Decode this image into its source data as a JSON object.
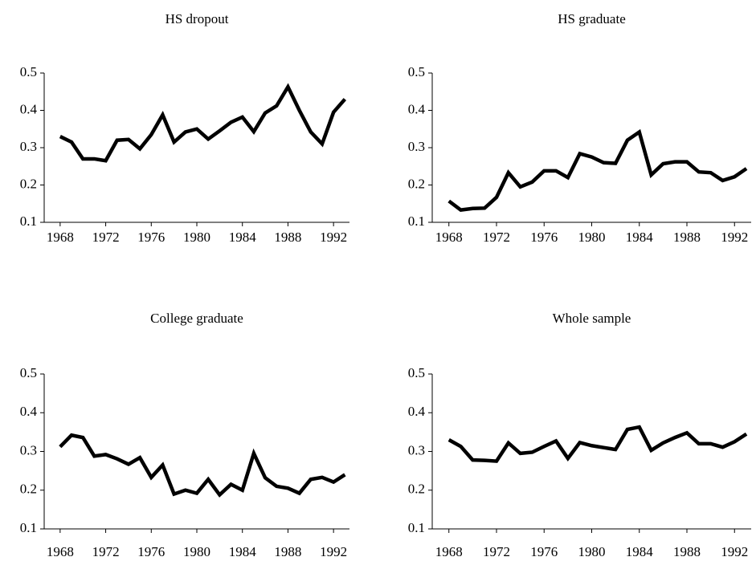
{
  "chart_data": [
    {
      "type": "line",
      "title": "HS dropout",
      "x": [
        1968,
        1969,
        1970,
        1971,
        1972,
        1973,
        1974,
        1975,
        1976,
        1977,
        1978,
        1979,
        1980,
        1981,
        1982,
        1983,
        1984,
        1985,
        1986,
        1987,
        1988,
        1989,
        1990,
        1991,
        1992,
        1993
      ],
      "series": [
        {
          "name": "HS dropout",
          "color": "#000000",
          "values": [
            0.33,
            0.315,
            0.27,
            0.27,
            0.265,
            0.32,
            0.322,
            0.297,
            0.335,
            0.388,
            0.315,
            0.342,
            0.35,
            0.323,
            0.345,
            0.368,
            0.382,
            0.343,
            0.393,
            0.412,
            0.463,
            0.4,
            0.342,
            0.31,
            0.395,
            0.43
          ]
        }
      ],
      "xlim": [
        1966.6,
        1993.4
      ],
      "xticks": [
        1968,
        1972,
        1976,
        1980,
        1984,
        1988,
        1992
      ],
      "ylim": [
        0.1,
        0.5
      ],
      "yticks": [
        0.1,
        0.2,
        0.3,
        0.4,
        0.5
      ]
    },
    {
      "type": "line",
      "title": "HS graduate",
      "x": [
        1968,
        1969,
        1970,
        1971,
        1972,
        1973,
        1974,
        1975,
        1976,
        1977,
        1978,
        1979,
        1980,
        1981,
        1982,
        1983,
        1984,
        1985,
        1986,
        1987,
        1988,
        1989,
        1990,
        1991,
        1992,
        1993
      ],
      "series": [
        {
          "name": "HS graduate",
          "color": "#000000",
          "values": [
            0.157,
            0.133,
            0.137,
            0.138,
            0.167,
            0.233,
            0.195,
            0.208,
            0.238,
            0.238,
            0.22,
            0.284,
            0.275,
            0.26,
            0.258,
            0.32,
            0.342,
            0.227,
            0.257,
            0.262,
            0.262,
            0.235,
            0.233,
            0.212,
            0.222,
            0.244
          ]
        }
      ],
      "xlim": [
        1966.6,
        1993.4
      ],
      "xticks": [
        1968,
        1972,
        1976,
        1980,
        1984,
        1988,
        1992
      ],
      "ylim": [
        0.1,
        0.5
      ],
      "yticks": [
        0.1,
        0.2,
        0.3,
        0.4,
        0.5
      ]
    },
    {
      "type": "line",
      "title": "College graduate",
      "x": [
        1968,
        1969,
        1970,
        1971,
        1972,
        1973,
        1974,
        1975,
        1976,
        1977,
        1978,
        1979,
        1980,
        1981,
        1982,
        1983,
        1984,
        1985,
        1986,
        1987,
        1988,
        1989,
        1990,
        1991,
        1992,
        1993
      ],
      "series": [
        {
          "name": "College graduate",
          "color": "#000000",
          "values": [
            0.312,
            0.342,
            0.336,
            0.288,
            0.292,
            0.281,
            0.267,
            0.284,
            0.233,
            0.265,
            0.19,
            0.2,
            0.192,
            0.228,
            0.188,
            0.215,
            0.2,
            0.295,
            0.232,
            0.21,
            0.205,
            0.192,
            0.228,
            0.233,
            0.221,
            0.24
          ]
        }
      ],
      "xlim": [
        1966.6,
        1993.4
      ],
      "xticks": [
        1968,
        1972,
        1976,
        1980,
        1984,
        1988,
        1992
      ],
      "ylim": [
        0.1,
        0.5
      ],
      "yticks": [
        0.1,
        0.2,
        0.3,
        0.4,
        0.5
      ]
    },
    {
      "type": "line",
      "title": "Whole sample",
      "x": [
        1968,
        1969,
        1970,
        1971,
        1972,
        1973,
        1974,
        1975,
        1976,
        1977,
        1978,
        1979,
        1980,
        1981,
        1982,
        1983,
        1984,
        1985,
        1986,
        1987,
        1988,
        1989,
        1990,
        1991,
        1992,
        1993
      ],
      "series": [
        {
          "name": "Whole sample",
          "color": "#000000",
          "values": [
            0.33,
            0.313,
            0.278,
            0.277,
            0.275,
            0.322,
            0.295,
            0.298,
            0.313,
            0.327,
            0.282,
            0.323,
            0.315,
            0.31,
            0.305,
            0.357,
            0.363,
            0.303,
            0.322,
            0.336,
            0.348,
            0.32,
            0.32,
            0.311,
            0.325,
            0.345
          ]
        }
      ],
      "xlim": [
        1966.6,
        1993.4
      ],
      "xticks": [
        1968,
        1972,
        1976,
        1980,
        1984,
        1988,
        1992
      ],
      "ylim": [
        0.1,
        0.5
      ],
      "yticks": [
        0.1,
        0.2,
        0.3,
        0.4,
        0.5
      ]
    }
  ]
}
